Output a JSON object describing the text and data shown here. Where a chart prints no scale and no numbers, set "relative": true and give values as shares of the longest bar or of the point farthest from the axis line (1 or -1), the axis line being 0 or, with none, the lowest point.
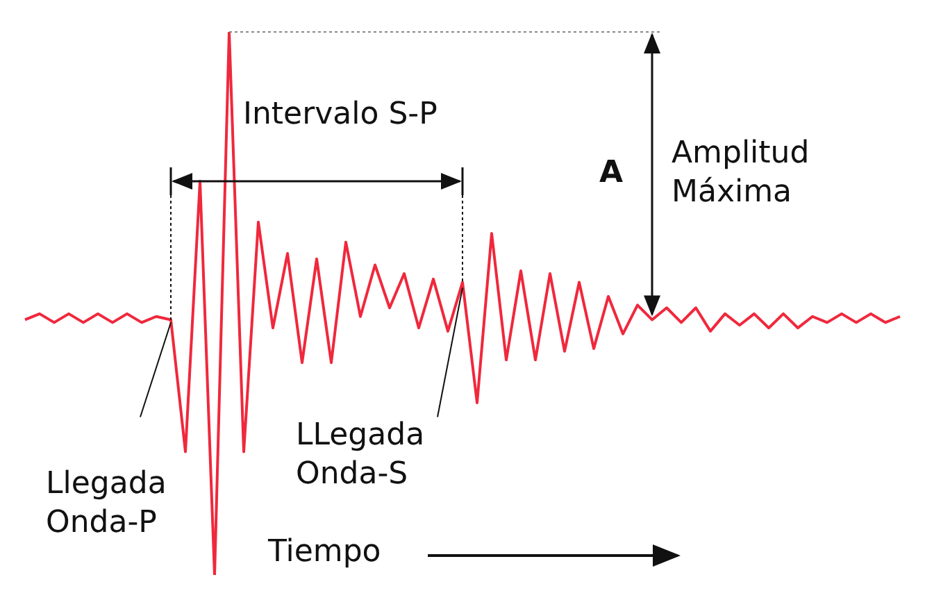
{
  "chart_data": {
    "type": "line",
    "relative": true,
    "color": "#f0283c",
    "categories": [
      null,
      null,
      null,
      null,
      null,
      null,
      null,
      null,
      null,
      null,
      null,
      null,
      null,
      null,
      null,
      null,
      null,
      null,
      null,
      null,
      null,
      null,
      null,
      null,
      null,
      null,
      null,
      null,
      null,
      null,
      null,
      null,
      null,
      null,
      null,
      null,
      null,
      null,
      null,
      null,
      null,
      null,
      null,
      null,
      null,
      null,
      null,
      null,
      null,
      null,
      null,
      null,
      null,
      null,
      null,
      null,
      null,
      null,
      null,
      null,
      null
    ],
    "values": [
      0.47,
      0.481,
      0.465,
      0.481,
      0.465,
      0.481,
      0.465,
      0.481,
      0.465,
      0.476,
      0.47,
      0.227,
      0.725,
      0,
      1,
      0.227,
      0.65,
      0.455,
      0.592,
      0.391,
      0.582,
      0.391,
      0.613,
      0.476,
      0.571,
      0.492,
      0.555,
      0.455,
      0.545,
      0.449,
      0.539,
      0.317,
      0.629,
      0.396,
      0.56,
      0.396,
      0.555,
      0.412,
      0.539,
      0.417,
      0.513,
      0.444,
      0.497,
      0.47,
      0.492,
      0.465,
      0.492,
      0.449,
      0.481,
      0.46,
      0.481,
      0.455,
      0.481,
      0.455,
      0.476,
      0.465,
      0.481,
      0.465,
      0.481,
      0.465,
      0.476
    ],
    "annotations": [
      "Intervalo S-P",
      "A",
      "Amplitud Máxima",
      "Llegada Onda-P",
      "LLegada Onda-S",
      "Tiempo"
    ]
  }
}
